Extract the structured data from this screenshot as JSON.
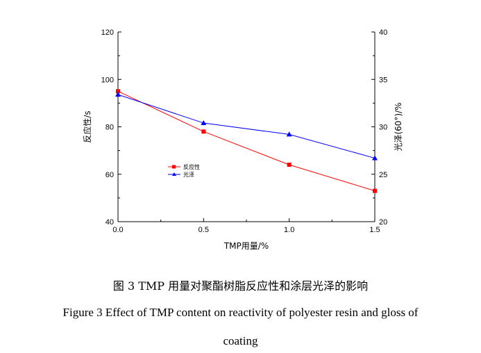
{
  "chart_data": {
    "type": "line",
    "x": [
      0.0,
      0.5,
      1.0,
      1.5
    ],
    "xlabel": "TMP用量/%",
    "xlim": [
      0.0,
      1.5
    ],
    "xticks": [
      "0.0",
      "0.5",
      "1.0",
      "1.5"
    ],
    "ylabel_left": "反应性/s",
    "ylim_left": [
      40,
      120
    ],
    "yticks_left": [
      "40",
      "60",
      "80",
      "100",
      "120"
    ],
    "ylabel_right": "光泽(60°)/%",
    "ylim_right": [
      20,
      40
    ],
    "yticks_right": [
      "20",
      "25",
      "30",
      "35",
      "40"
    ],
    "grid": false,
    "legend_position": "center-left",
    "series": [
      {
        "name": "反应性",
        "axis": "left",
        "color": "#ff0000",
        "marker": "square",
        "values": [
          95,
          78,
          64,
          53
        ]
      },
      {
        "name": "光泽",
        "axis": "right",
        "color": "#0000ff",
        "marker": "triangle",
        "values": [
          33.4,
          30.4,
          29.2,
          26.7
        ]
      }
    ]
  },
  "caption": {
    "chinese": "图 3 TMP 用量对聚酯树脂反应性和涂层光泽的影响",
    "english_line1": "Figure 3 Effect of TMP content on reactivity of polyester resin and gloss of",
    "english_line2": "coating"
  }
}
